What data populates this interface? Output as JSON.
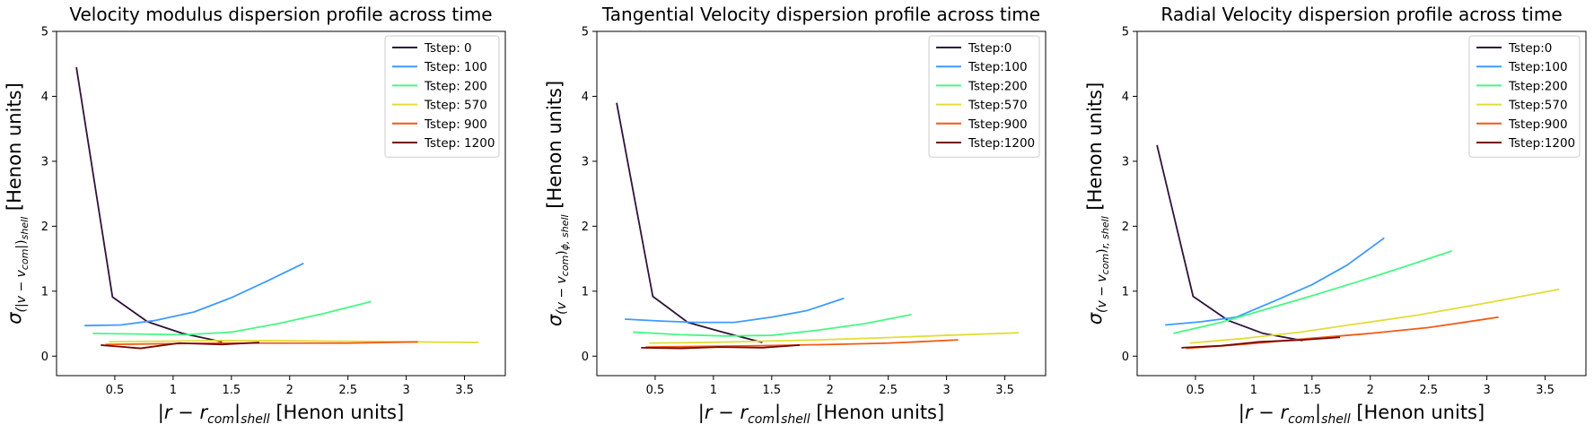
{
  "chart_data": [
    {
      "type": "line",
      "title": "Velocity modulus dispersion profile across time",
      "xlabel": {
        "main": "|r − r",
        "sub1": "com",
        "mid": "|",
        "sub2": "shell",
        "unit": " [Henon units]"
      },
      "ylabel": {
        "sigma": "σ",
        "sub": "(|v − v",
        "subsub": "com",
        "subend": "|)",
        "subsub2": "shell",
        "unit": " [Henon units]"
      },
      "xlim": [
        0.0,
        3.85
      ],
      "ylim": [
        -0.3,
        5.0
      ],
      "xticks": [
        0.5,
        1.0,
        1.5,
        2.0,
        2.5,
        3.0,
        3.5
      ],
      "yticks": [
        0,
        1,
        2,
        3,
        4,
        5
      ],
      "legend_position": "top-right",
      "series": [
        {
          "name": "Tstep: 0",
          "color": "#30123b",
          "x": [
            0.17,
            0.48,
            0.78,
            1.08,
            1.42
          ],
          "y": [
            4.45,
            0.91,
            0.53,
            0.35,
            0.22
          ]
        },
        {
          "name": "Tstep: 100",
          "color": "#3e9bfe",
          "x": [
            0.24,
            0.55,
            0.85,
            1.18,
            1.5,
            1.8,
            2.12
          ],
          "y": [
            0.47,
            0.48,
            0.55,
            0.68,
            0.9,
            1.15,
            1.43
          ]
        },
        {
          "name": "Tstep: 200",
          "color": "#46f884",
          "x": [
            0.31,
            0.72,
            1.1,
            1.5,
            1.9,
            2.3,
            2.7
          ],
          "y": [
            0.35,
            0.34,
            0.33,
            0.37,
            0.5,
            0.66,
            0.84
          ]
        },
        {
          "name": "Tstep: 570",
          "color": "#e1dd37",
          "x": [
            0.45,
            0.9,
            1.4,
            1.9,
            2.4,
            3.0,
            3.62
          ],
          "y": [
            0.22,
            0.23,
            0.24,
            0.24,
            0.23,
            0.22,
            0.21
          ]
        },
        {
          "name": "Tstep: 900",
          "color": "#f05b12",
          "x": [
            0.42,
            0.9,
            1.4,
            2.0,
            2.5,
            3.1
          ],
          "y": [
            0.18,
            0.19,
            0.2,
            0.2,
            0.2,
            0.22
          ]
        },
        {
          "name": "Tstep: 1200",
          "color": "#7a0403",
          "x": [
            0.38,
            0.72,
            1.05,
            1.42,
            1.74
          ],
          "y": [
            0.17,
            0.12,
            0.2,
            0.18,
            0.21
          ]
        }
      ]
    },
    {
      "type": "line",
      "title": "Tangential Velocity dispersion profile across time",
      "xlabel": {
        "main": "|r − r",
        "sub1": "com",
        "mid": "|",
        "sub2": "shell",
        "unit": " [Henon units]"
      },
      "ylabel": {
        "sigma": "σ",
        "sub": "(v − v",
        "subsub": "com",
        "subend": ")",
        "subsub2": "ϕ, shell",
        "unit": " [Henon units]"
      },
      "xlim": [
        0.0,
        3.85
      ],
      "ylim": [
        -0.3,
        5.0
      ],
      "xticks": [
        0.5,
        1.0,
        1.5,
        2.0,
        2.5,
        3.0,
        3.5
      ],
      "yticks": [
        0,
        1,
        2,
        3,
        4,
        5
      ],
      "legend_position": "top-right",
      "series": [
        {
          "name": "Tstep:0",
          "color": "#30123b",
          "x": [
            0.17,
            0.48,
            0.78,
            1.08,
            1.42
          ],
          "y": [
            3.9,
            0.92,
            0.52,
            0.37,
            0.21
          ]
        },
        {
          "name": "Tstep:100",
          "color": "#3e9bfe",
          "x": [
            0.24,
            0.55,
            0.85,
            1.18,
            1.5,
            1.8,
            2.12
          ],
          "y": [
            0.57,
            0.54,
            0.52,
            0.52,
            0.6,
            0.7,
            0.89
          ]
        },
        {
          "name": "Tstep:200",
          "color": "#46f884",
          "x": [
            0.31,
            0.72,
            1.1,
            1.5,
            1.9,
            2.3,
            2.7
          ],
          "y": [
            0.37,
            0.33,
            0.31,
            0.32,
            0.4,
            0.5,
            0.64
          ]
        },
        {
          "name": "Tstep:570",
          "color": "#e1dd37",
          "x": [
            0.45,
            0.9,
            1.4,
            1.9,
            2.4,
            3.0,
            3.62
          ],
          "y": [
            0.2,
            0.21,
            0.23,
            0.25,
            0.28,
            0.32,
            0.36
          ]
        },
        {
          "name": "Tstep:900",
          "color": "#f05b12",
          "x": [
            0.42,
            0.9,
            1.4,
            2.0,
            2.5,
            3.1
          ],
          "y": [
            0.14,
            0.15,
            0.16,
            0.18,
            0.2,
            0.25
          ]
        },
        {
          "name": "Tstep:1200",
          "color": "#7a0403",
          "x": [
            0.38,
            0.72,
            1.05,
            1.42,
            1.74
          ],
          "y": [
            0.13,
            0.12,
            0.14,
            0.13,
            0.17
          ]
        }
      ]
    },
    {
      "type": "line",
      "title": "Radial Velocity dispersion profile across time",
      "xlabel": {
        "main": "|r − r",
        "sub1": "com",
        "mid": "|",
        "sub2": "shell",
        "unit": " [Henon units]"
      },
      "ylabel": {
        "sigma": "σ",
        "sub": "(v − v",
        "subsub": "com",
        "subend": ")",
        "subsub2": "r, shell",
        "unit": " [Henon units]"
      },
      "xlim": [
        0.0,
        3.85
      ],
      "ylim": [
        -0.3,
        5.0
      ],
      "xticks": [
        0.5,
        1.0,
        1.5,
        2.0,
        2.5,
        3.0,
        3.5
      ],
      "yticks": [
        0,
        1,
        2,
        3,
        4,
        5
      ],
      "legend_position": "top-right",
      "series": [
        {
          "name": "Tstep:0",
          "color": "#30123b",
          "x": [
            0.17,
            0.48,
            0.78,
            1.08,
            1.42
          ],
          "y": [
            3.25,
            0.92,
            0.55,
            0.35,
            0.24
          ]
        },
        {
          "name": "Tstep:100",
          "color": "#3e9bfe",
          "x": [
            0.24,
            0.55,
            0.85,
            1.18,
            1.5,
            1.8,
            2.12
          ],
          "y": [
            0.48,
            0.53,
            0.6,
            0.85,
            1.1,
            1.4,
            1.82
          ]
        },
        {
          "name": "Tstep:200",
          "color": "#46f884",
          "x": [
            0.31,
            0.72,
            1.1,
            1.5,
            1.9,
            2.3,
            2.7
          ],
          "y": [
            0.35,
            0.52,
            0.72,
            0.93,
            1.15,
            1.38,
            1.62
          ]
        },
        {
          "name": "Tstep:570",
          "color": "#e1dd37",
          "x": [
            0.45,
            0.9,
            1.4,
            1.9,
            2.4,
            3.0,
            3.62
          ],
          "y": [
            0.2,
            0.27,
            0.37,
            0.5,
            0.63,
            0.82,
            1.03
          ]
        },
        {
          "name": "Tstep:900",
          "color": "#f05b12",
          "x": [
            0.42,
            0.9,
            1.4,
            2.0,
            2.5,
            3.1
          ],
          "y": [
            0.12,
            0.18,
            0.26,
            0.35,
            0.44,
            0.6
          ]
        },
        {
          "name": "Tstep:1200",
          "color": "#7a0403",
          "x": [
            0.38,
            0.72,
            1.05,
            1.42,
            1.74
          ],
          "y": [
            0.13,
            0.16,
            0.22,
            0.25,
            0.29
          ]
        }
      ]
    }
  ]
}
